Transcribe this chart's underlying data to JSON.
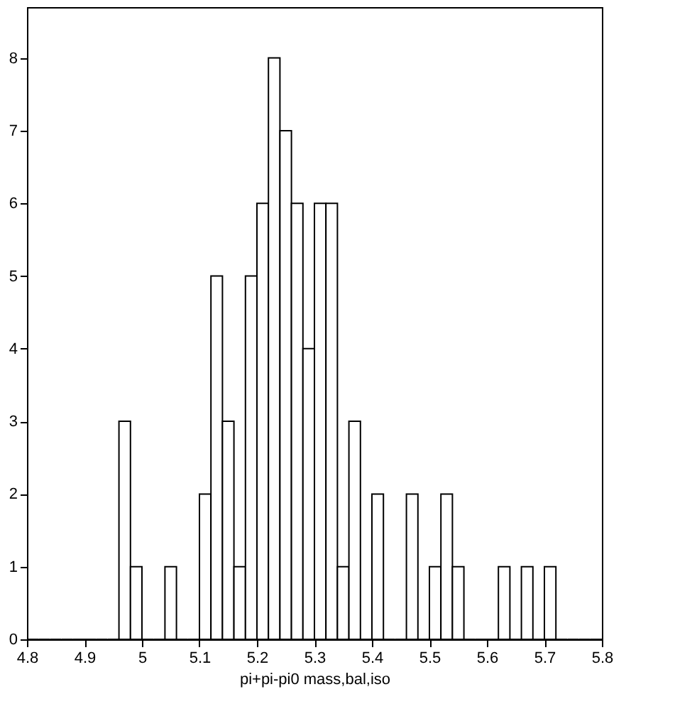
{
  "chart_data": {
    "type": "histogram",
    "xlabel": "pi+pi-pi0 mass,bal,iso",
    "bins": [
      4.8,
      4.82,
      4.84,
      4.86,
      4.88,
      4.9,
      4.92,
      4.94,
      4.96,
      4.98,
      5.0,
      5.02,
      5.04,
      5.06,
      5.08,
      5.1,
      5.12,
      5.14,
      5.16,
      5.18,
      5.2,
      5.22,
      5.24,
      5.26,
      5.28,
      5.3,
      5.32,
      5.34,
      5.36,
      5.38,
      5.4,
      5.42,
      5.44,
      5.46,
      5.48,
      5.5,
      5.52,
      5.54,
      5.56,
      5.58,
      5.6,
      5.62,
      5.64,
      5.66,
      5.68,
      5.7,
      5.72,
      5.74,
      5.76,
      5.78,
      5.8
    ],
    "values": [
      0,
      0,
      0,
      0,
      0,
      0,
      0,
      0,
      3,
      1,
      0,
      0,
      1,
      0,
      0,
      2,
      5,
      3,
      1,
      5,
      6,
      8,
      7,
      6,
      4,
      6,
      6,
      1,
      3,
      0,
      2,
      0,
      0,
      2,
      0,
      1,
      2,
      1,
      0,
      0,
      0,
      1,
      0,
      1,
      0,
      1,
      0,
      0,
      0,
      0
    ],
    "color": "#000000",
    "xlim": [
      4.8,
      5.8
    ],
    "xticks": [
      4.8,
      4.9,
      5,
      5.1,
      5.2,
      5.3,
      5.4,
      5.5,
      5.6,
      5.7,
      5.8
    ],
    "ylim": [
      0,
      8.7
    ],
    "yticks": [
      0,
      1,
      2,
      3,
      4,
      5,
      6,
      7,
      8
    ],
    "grid": false
  }
}
